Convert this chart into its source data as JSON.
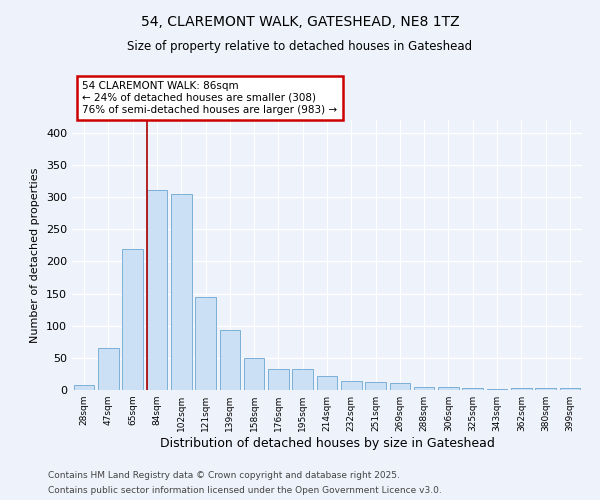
{
  "title": "54, CLAREMONT WALK, GATESHEAD, NE8 1TZ",
  "subtitle": "Size of property relative to detached houses in Gateshead",
  "xlabel": "Distribution of detached houses by size in Gateshead",
  "ylabel": "Number of detached properties",
  "categories": [
    "28sqm",
    "47sqm",
    "65sqm",
    "84sqm",
    "102sqm",
    "121sqm",
    "139sqm",
    "158sqm",
    "176sqm",
    "195sqm",
    "214sqm",
    "232sqm",
    "251sqm",
    "269sqm",
    "288sqm",
    "306sqm",
    "325sqm",
    "343sqm",
    "362sqm",
    "380sqm",
    "399sqm"
  ],
  "values": [
    8,
    65,
    220,
    311,
    305,
    145,
    93,
    50,
    33,
    33,
    22,
    14,
    13,
    11,
    4,
    4,
    3,
    2,
    3,
    3,
    3
  ],
  "bar_color": "#cce0f5",
  "bar_edge_color": "#7ab0d8",
  "vline_x_index": 3,
  "vline_color": "#aa0000",
  "annotation_line1": "54 CLAREMONT WALK: 86sqm",
  "annotation_line2": "← 24% of detached houses are smaller (308)",
  "annotation_line3": "76% of semi-detached houses are larger (983) →",
  "annotation_box_color": "#ffffff",
  "annotation_box_edgecolor": "#cc0000",
  "ylim": [
    0,
    420
  ],
  "yticks": [
    0,
    50,
    100,
    150,
    200,
    250,
    300,
    350,
    400
  ],
  "background_color": "#eef2fa",
  "grid_color": "#ffffff",
  "footer_line1": "Contains HM Land Registry data © Crown copyright and database right 2025.",
  "footer_line2": "Contains public sector information licensed under the Open Government Licence v3.0."
}
